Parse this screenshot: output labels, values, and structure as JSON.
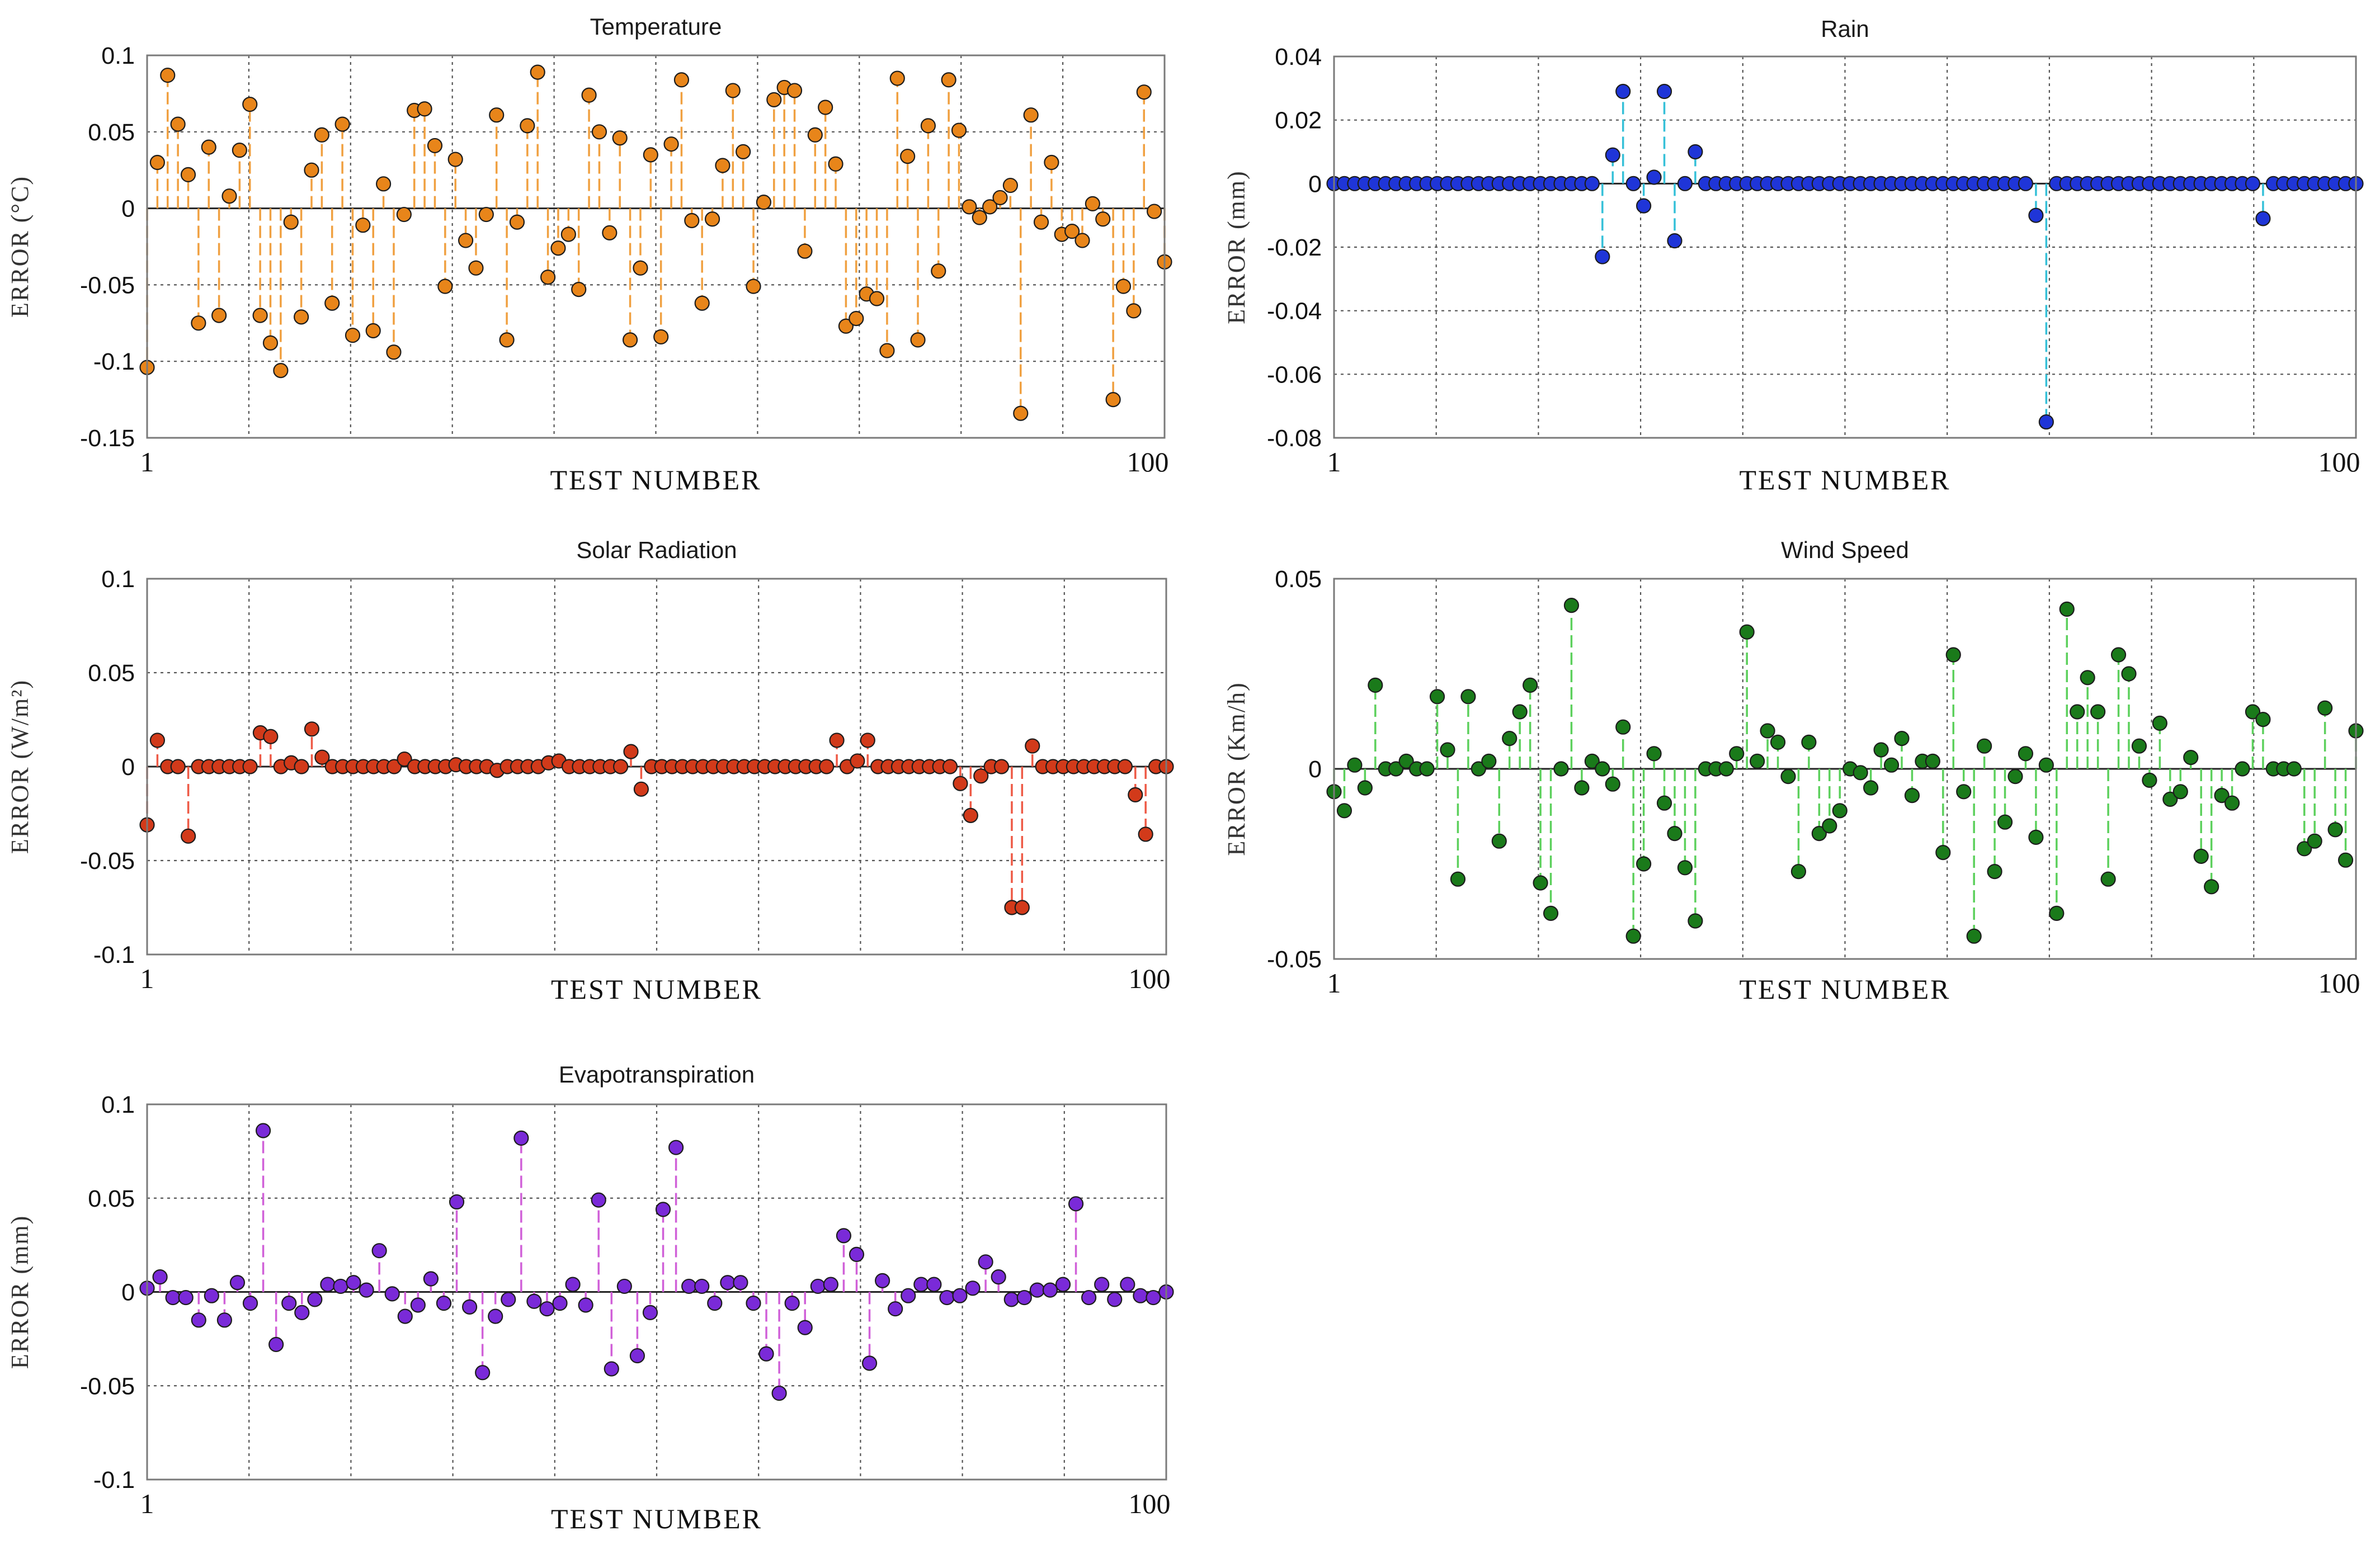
{
  "chart_data": [
    {
      "type": "stem",
      "title": "Temperature",
      "xlabel": "TEST NUMBER",
      "ylabel": "ERROR (°C)",
      "xlim": [
        1,
        100
      ],
      "ylim": [
        -0.15,
        0.1
      ],
      "ytick_labels": [
        "0.1",
        "0.05",
        "0",
        "-0.05",
        "-0.1",
        "-0.15"
      ],
      "yticks": [
        0.1,
        0.05,
        0,
        -0.05,
        -0.1,
        -0.15
      ],
      "xtick_labels": [
        "1",
        "100"
      ],
      "marker_color": "#e8851a",
      "stem_color": "#f0a040",
      "values": [
        -0.104,
        0.03,
        0.087,
        0.055,
        0.022,
        -0.075,
        0.04,
        -0.07,
        0.008,
        0.038,
        0.068,
        -0.07,
        -0.088,
        -0.106,
        -0.009,
        -0.071,
        0.025,
        0.048,
        -0.062,
        0.055,
        -0.083,
        -0.011,
        -0.08,
        0.016,
        -0.094,
        -0.004,
        0.064,
        0.065,
        0.041,
        -0.051,
        0.032,
        -0.021,
        -0.039,
        -0.004,
        0.061,
        -0.086,
        -0.009,
        0.054,
        0.089,
        -0.045,
        -0.026,
        -0.017,
        -0.053,
        0.074,
        0.05,
        -0.016,
        0.046,
        -0.086,
        -0.039,
        0.035,
        -0.084,
        0.042,
        0.084,
        -0.008,
        -0.062,
        -0.007,
        0.028,
        0.077,
        0.037,
        -0.051,
        0.004,
        0.071,
        0.079,
        0.077,
        -0.028,
        0.048,
        0.066,
        0.029,
        -0.077,
        -0.072,
        -0.056,
        -0.059,
        -0.093,
        0.085,
        0.034,
        -0.086,
        0.054,
        -0.041,
        0.084,
        0.051,
        0.001,
        -0.006,
        0.001,
        0.007,
        0.015,
        -0.134,
        0.061,
        -0.009,
        0.03,
        -0.017,
        -0.015,
        -0.021,
        0.003,
        -0.007,
        -0.125,
        -0.051,
        -0.067,
        0.076,
        -0.002,
        -0.035
      ]
    },
    {
      "type": "stem",
      "title": "Rain",
      "xlabel": "TEST NUMBER",
      "ylabel": "ERROR (mm)",
      "xlim": [
        1,
        100
      ],
      "ylim": [
        -0.08,
        0.04
      ],
      "ytick_labels": [
        "0.04",
        "0.02",
        "0",
        "-0.02",
        "-0.04",
        "-0.06",
        "-0.08"
      ],
      "yticks": [
        0.04,
        0.02,
        0,
        -0.02,
        -0.04,
        -0.06,
        -0.08
      ],
      "xtick_labels": [
        "1",
        "100"
      ],
      "marker_color": "#1f35d8",
      "stem_color": "#35c0d8",
      "values": [
        0,
        0,
        0,
        0,
        0,
        0,
        0,
        0,
        0,
        0,
        0,
        0,
        0,
        0,
        0,
        0,
        0,
        0,
        0,
        0,
        0,
        0,
        0,
        0,
        0,
        0,
        -0.023,
        0.009,
        0.029,
        0,
        -0.007,
        0.002,
        0.029,
        -0.018,
        0,
        0.01,
        0,
        0,
        0,
        0,
        0,
        0,
        0,
        0,
        0,
        0,
        0,
        0,
        0,
        0,
        0,
        0,
        0,
        0,
        0,
        0,
        0,
        0,
        0,
        0,
        0,
        0,
        0,
        0,
        0,
        0,
        0,
        0,
        -0.01,
        -0.075,
        0,
        0,
        0,
        0,
        0,
        0,
        0,
        0,
        0,
        0,
        0,
        0,
        0,
        0,
        0,
        0,
        0,
        0,
        0,
        0,
        -0.011,
        0,
        0,
        0,
        0,
        0,
        0,
        0,
        0,
        0
      ]
    },
    {
      "type": "stem",
      "title": "Solar Radiation",
      "xlabel": "TEST NUMBER",
      "ylabel": "ERROR (W/m²)",
      "xlim": [
        1,
        100
      ],
      "ylim": [
        -0.1,
        0.1
      ],
      "ytick_labels": [
        "0.1",
        "0.05",
        "0",
        "-0.05",
        "-0.1"
      ],
      "yticks": [
        0.1,
        0.05,
        0,
        -0.05,
        -0.1
      ],
      "xtick_labels": [
        "1",
        "100"
      ],
      "marker_color": "#d23a1a",
      "stem_color": "#ee5a46",
      "values": [
        -0.031,
        0.014,
        0,
        0,
        -0.037,
        0,
        0,
        0,
        0,
        0,
        0,
        0.018,
        0.016,
        0,
        0.002,
        0,
        0.02,
        0.005,
        0,
        0,
        0,
        0,
        0,
        0,
        0,
        0.004,
        0,
        0,
        0,
        0,
        0.001,
        0,
        0,
        0,
        -0.002,
        0,
        0,
        0,
        0,
        0.002,
        0.003,
        0,
        0,
        0,
        0,
        0,
        0,
        0.008,
        -0.012,
        0,
        0,
        0,
        0,
        0,
        0,
        0,
        0,
        0,
        0,
        0,
        0,
        0,
        0,
        0,
        0,
        0,
        0,
        0.014,
        0,
        0.003,
        0.014,
        0,
        0,
        0,
        0,
        0,
        0,
        0,
        0,
        -0.009,
        -0.026,
        -0.005,
        0,
        0,
        -0.075,
        -0.075,
        0.011,
        0,
        0,
        0,
        0,
        0,
        0,
        0,
        0,
        0,
        -0.015,
        -0.036,
        0,
        0
      ]
    },
    {
      "type": "stem",
      "title": "Wind Speed",
      "xlabel": "TEST NUMBER",
      "ylabel": "ERROR (Km/h)",
      "xlim": [
        1,
        100
      ],
      "ylim": [
        -0.05,
        0.05
      ],
      "ytick_labels": [
        "0.05",
        "0",
        "-0.05"
      ],
      "yticks": [
        0.05,
        0,
        -0.05
      ],
      "xtick_labels": [
        "1",
        "100"
      ],
      "marker_color": "#1a7a1a",
      "stem_color": "#5cd05c",
      "values": [
        -0.006,
        -0.011,
        0.001,
        -0.005,
        0.022,
        0,
        0,
        0.002,
        0,
        0,
        0.019,
        0.005,
        -0.029,
        0.019,
        0,
        0.002,
        -0.019,
        0.008,
        0.015,
        0.022,
        -0.03,
        -0.038,
        0,
        0.043,
        -0.005,
        0.002,
        0,
        -0.004,
        0.011,
        -0.044,
        -0.025,
        0.004,
        -0.009,
        -0.017,
        -0.026,
        -0.04,
        0,
        0,
        0,
        0.004,
        0.036,
        0.002,
        0.01,
        0.007,
        -0.002,
        -0.027,
        0.007,
        -0.017,
        -0.015,
        -0.011,
        0,
        -0.001,
        -0.005,
        0.005,
        0.001,
        0.008,
        -0.007,
        0.002,
        0.002,
        -0.022,
        0.03,
        -0.006,
        -0.044,
        0.006,
        -0.027,
        -0.014,
        -0.002,
        0.004,
        -0.018,
        0.001,
        -0.038,
        0.042,
        0.015,
        0.024,
        0.015,
        -0.029,
        0.03,
        0.025,
        0.006,
        -0.003,
        0.012,
        -0.008,
        -0.006,
        0.003,
        -0.023,
        -0.031,
        -0.007,
        -0.009,
        0,
        0.015,
        0.013,
        0,
        0,
        0,
        -0.021,
        -0.019,
        0.016,
        -0.016,
        -0.024,
        0.01
      ]
    },
    {
      "type": "stem",
      "title": "Evapotranspiration",
      "xlabel": "TEST NUMBER",
      "ylabel": "ERROR (mm)",
      "xlim": [
        1,
        100
      ],
      "ylim": [
        -0.1,
        0.1
      ],
      "ytick_labels": [
        "0.1",
        "0.05",
        "0",
        "-0.05",
        "-0.1"
      ],
      "yticks": [
        0.1,
        0.05,
        0,
        -0.05,
        -0.1
      ],
      "xtick_labels": [
        "1",
        "100"
      ],
      "marker_color": "#7a2ad8",
      "stem_color": "#d060d8",
      "values": [
        0.002,
        0.008,
        -0.003,
        -0.003,
        -0.015,
        -0.002,
        -0.015,
        0.005,
        -0.006,
        0.086,
        -0.028,
        -0.006,
        -0.011,
        -0.004,
        0.004,
        0.003,
        0.005,
        0.001,
        0.022,
        -0.001,
        -0.013,
        -0.007,
        0.007,
        -0.006,
        0.048,
        -0.008,
        -0.043,
        -0.013,
        -0.004,
        0.082,
        -0.005,
        -0.009,
        -0.006,
        0.004,
        -0.007,
        0.049,
        -0.041,
        0.003,
        -0.034,
        -0.011,
        0.044,
        0.077,
        0.003,
        0.003,
        -0.006,
        0.005,
        0.005,
        -0.006,
        -0.033,
        -0.054,
        -0.006,
        -0.019,
        0.003,
        0.004,
        0.03,
        0.02,
        -0.038,
        0.006,
        -0.009,
        -0.002,
        0.004,
        0.004,
        -0.003,
        -0.002,
        0.002,
        0.016,
        0.008,
        -0.004,
        -0.003,
        0.001,
        0.001,
        0.004,
        0.047,
        -0.003,
        0.004,
        -0.004,
        0.004,
        -0.002,
        -0.003,
        0
      ]
    }
  ]
}
